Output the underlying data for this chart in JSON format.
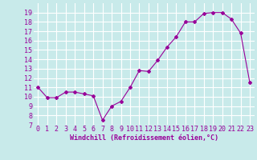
{
  "x": [
    0,
    1,
    2,
    3,
    4,
    5,
    6,
    7,
    8,
    9,
    10,
    11,
    12,
    13,
    14,
    15,
    16,
    17,
    18,
    19,
    20,
    21,
    22,
    23
  ],
  "y": [
    11.0,
    9.9,
    9.9,
    10.5,
    10.5,
    10.3,
    10.1,
    7.5,
    9.0,
    9.5,
    11.0,
    12.8,
    12.7,
    13.9,
    15.3,
    16.4,
    18.0,
    18.0,
    18.9,
    19.0,
    19.0,
    18.3,
    16.8,
    11.5
  ],
  "line_color": "#990099",
  "marker": "D",
  "marker_size": 2,
  "bg_color": "#c8eaea",
  "grid_color": "#ffffff",
  "xlabel": "Windchill (Refroidissement éolien,°C)",
  "xlabel_color": "#990099",
  "tick_color": "#990099",
  "ylim": [
    7,
    20
  ],
  "xlim": [
    -0.5,
    23.5
  ],
  "yticks": [
    7,
    8,
    9,
    10,
    11,
    12,
    13,
    14,
    15,
    16,
    17,
    18,
    19
  ],
  "xticks": [
    0,
    1,
    2,
    3,
    4,
    5,
    6,
    7,
    8,
    9,
    10,
    11,
    12,
    13,
    14,
    15,
    16,
    17,
    18,
    19,
    20,
    21,
    22,
    23
  ],
  "xtick_labels": [
    "0",
    "1",
    "2",
    "3",
    "4",
    "5",
    "6",
    "7",
    "8",
    "9",
    "10",
    "11",
    "12",
    "13",
    "14",
    "15",
    "16",
    "17",
    "18",
    "19",
    "20",
    "21",
    "22",
    "23"
  ],
  "ytick_labels": [
    "7",
    "8",
    "9",
    "10",
    "11",
    "12",
    "13",
    "14",
    "15",
    "16",
    "17",
    "18",
    "19"
  ],
  "tick_fontsize": 6,
  "xlabel_fontsize": 6
}
